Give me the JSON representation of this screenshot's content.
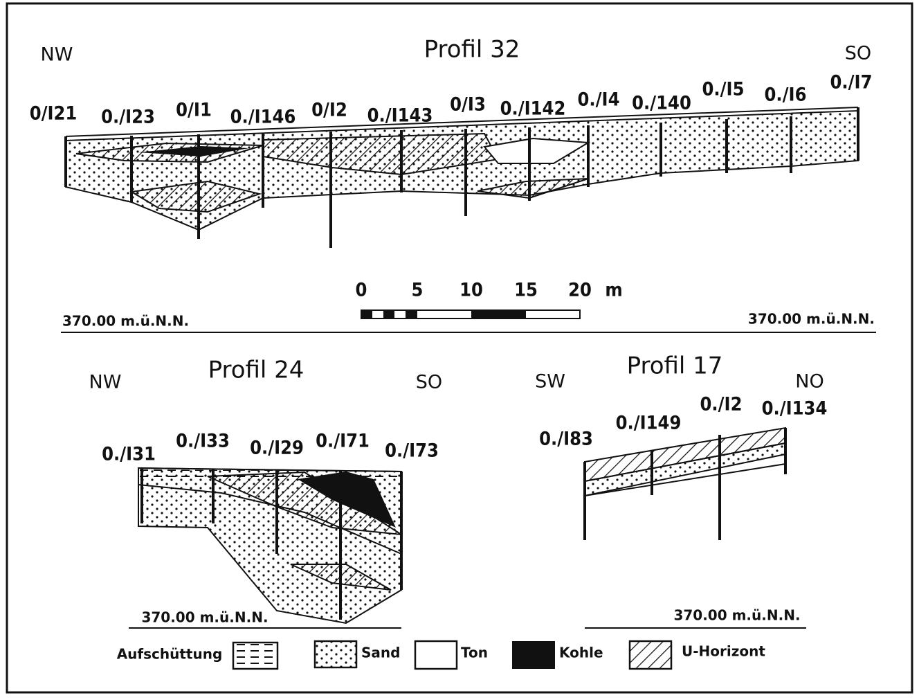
{
  "profil_32": {
    "title": "Profil 32",
    "left": "NW",
    "right": "SO",
    "boreholes": [
      "0/I21",
      "0./I23",
      "0/I1",
      "0./I146",
      "0/I2",
      "0./I143",
      "0/I3",
      "0./I142",
      "0./I4",
      "0./140",
      "0./I5",
      "0./I6",
      "0./I7"
    ],
    "datum_left": "370.00 m.ü.N.N.",
    "datum_right": "370.00 m.ü.N.N."
  },
  "scale": {
    "labels": [
      "0",
      "5",
      "10",
      "15",
      "20"
    ],
    "unit": "m"
  },
  "profil_24": {
    "title": "Profil 24",
    "left": "NW",
    "right": "SO",
    "boreholes": [
      "0./I31",
      "0./I33",
      "0./I29",
      "0./I71",
      "0./I73"
    ],
    "datum": "370.00 m.ü.N.N."
  },
  "profil_17": {
    "title": "Profil 17",
    "left": "SW",
    "right": "NO",
    "boreholes": [
      "0./I83",
      "0./I149",
      "0./I2",
      "0./I134"
    ],
    "datum": "370.00 m.ü.N.N."
  },
  "legend": [
    "Aufschüttung",
    "Sand",
    "Ton",
    "Kohle",
    "U-Horizont"
  ]
}
